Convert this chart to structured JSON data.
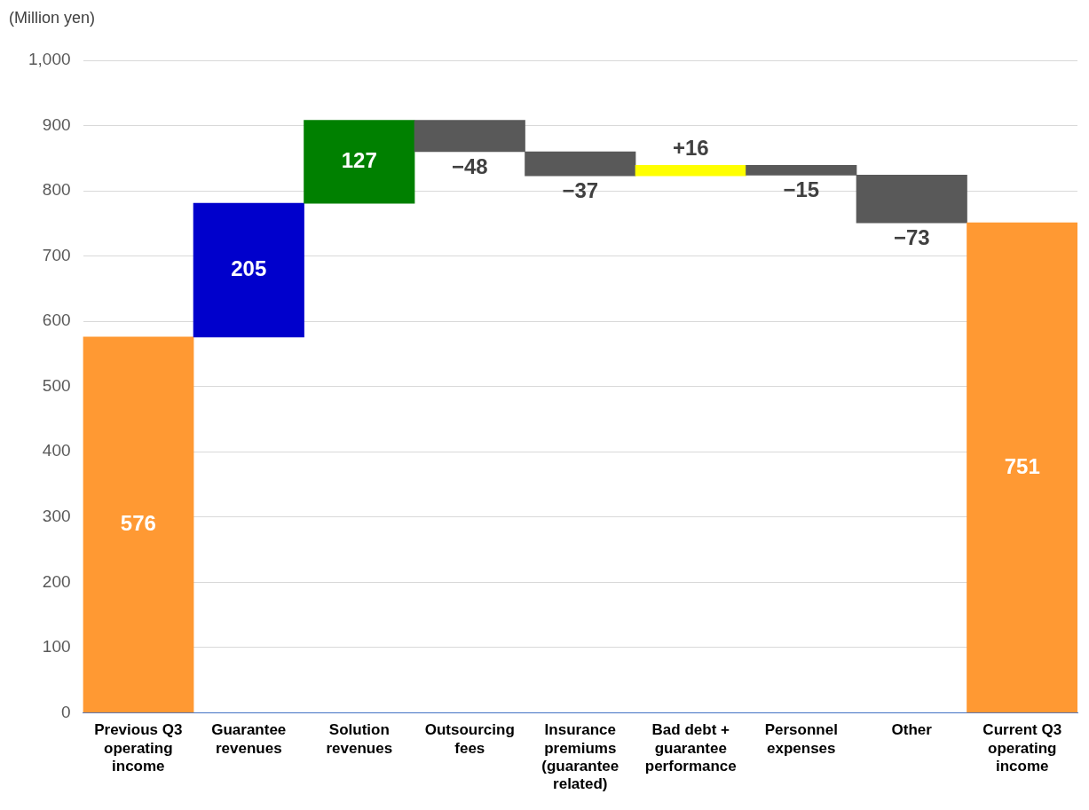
{
  "chart_data": {
    "type": "bar",
    "ylabel": "(Million yen)",
    "categories": [
      "Previous Q3 operating income",
      "Guarantee revenues",
      "Solution revenues",
      "Outsourcing fees",
      "Insurance premiums (guarantee related)",
      "Bad debt + guarantee performance",
      "Personnel expenses",
      "Other",
      "Current Q3 operating income"
    ],
    "values": [
      576,
      205,
      127,
      -48,
      -37,
      16,
      -15,
      -73,
      751
    ],
    "base": [
      0,
      576,
      781,
      908,
      860,
      823,
      839,
      824,
      0
    ],
    "colors": [
      "#ff9933",
      "#0000cc",
      "#008000",
      "#595959",
      "#595959",
      "#ffff00",
      "#595959",
      "#595959",
      "#ff9933"
    ],
    "value_labels": [
      "576",
      "205",
      "127",
      "−48",
      "−37",
      "+16",
      "−15",
      "−73",
      "751"
    ],
    "ylim": [
      0,
      1000
    ],
    "yticks": [
      0,
      100,
      200,
      300,
      400,
      500,
      600,
      700,
      800,
      900,
      {
        "value": 1000,
        "label": "1,000"
      }
    ],
    "grid": "y",
    "legend": false
  }
}
